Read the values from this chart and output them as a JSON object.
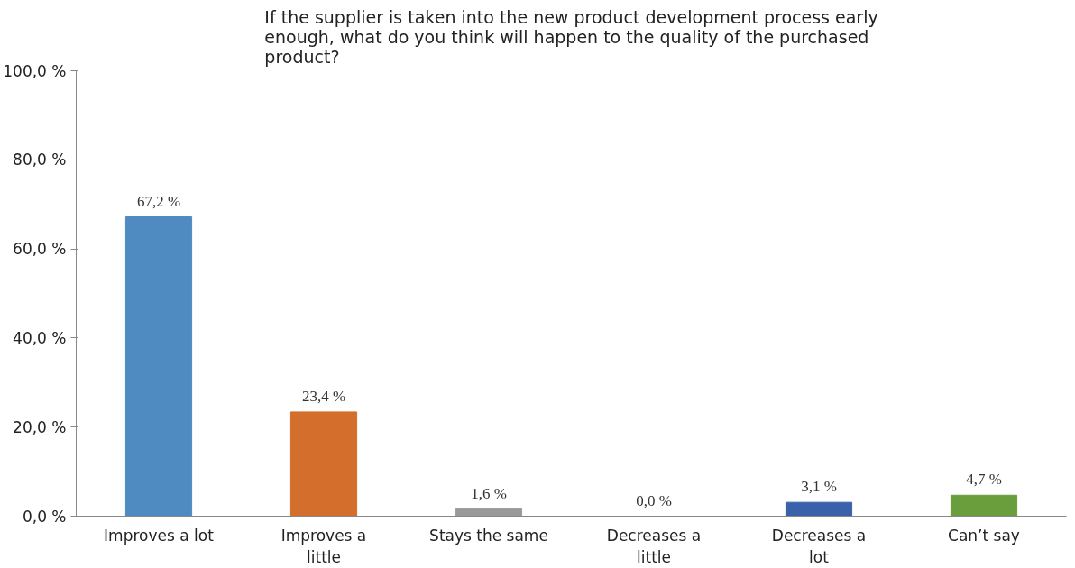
{
  "chart_data": {
    "type": "bar",
    "title": "If the supplier is taken into the new product development process early enough, what do you think will happen to the quality of the purchased product?",
    "categories": [
      "Improves a lot",
      "Improves a little",
      "Stays the same",
      "Decreases a little",
      "Decreases a lot",
      "Can’t say"
    ],
    "values": [
      67.2,
      23.4,
      1.6,
      0.0,
      3.1,
      4.7
    ],
    "colors": [
      "#4f8bc0",
      "#d46e2c",
      "#9a9a9a",
      "#c9a227",
      "#3a62ab",
      "#6a9d3c"
    ],
    "value_labels": [
      "67,2 %",
      "23,4 %",
      "1,6 %",
      "0,0 %",
      "3,1 %",
      "4,7 %"
    ],
    "ylim": [
      0,
      100
    ],
    "yticks": [
      {
        "value": 0,
        "label": "0,0 %"
      },
      {
        "value": 20,
        "label": "20,0 %"
      },
      {
        "value": 40,
        "label": "40,0 %"
      },
      {
        "value": 60,
        "label": "60,0 %"
      },
      {
        "value": 80,
        "label": "80,0 %"
      },
      {
        "value": 100,
        "label": "100,0 %"
      }
    ],
    "grid": false
  }
}
